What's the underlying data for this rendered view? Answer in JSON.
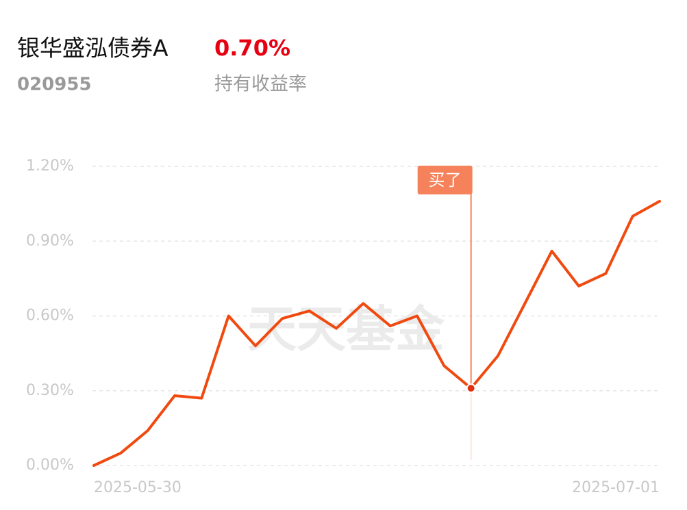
{
  "header": {
    "name": "银华盛泓债券A",
    "code": "020955",
    "return": "0.70%",
    "return_label": "持有收益率"
  },
  "chart_data": {
    "type": "line",
    "watermark": "天天基金",
    "categories": [
      "2025-05-30",
      null,
      null,
      null,
      null,
      null,
      null,
      null,
      null,
      null,
      null,
      null,
      null,
      null,
      null,
      null,
      null,
      null,
      null,
      null,
      null,
      "2025-07-01"
    ],
    "series": [
      {
        "color": "#f04a10",
        "values": [
          0,
          0.05,
          0.14,
          0.28,
          0.27,
          0.6,
          0.48,
          0.59,
          0.62,
          0.55,
          0.65,
          0.56,
          0.6,
          0.4,
          0.31,
          0.44,
          0.65,
          0.86,
          0.72,
          0.77,
          1.0,
          1.06
        ]
      }
    ],
    "ylim": [
      0,
      1.2
    ],
    "yticks": [
      {
        "value": 0,
        "label": "0.00%"
      },
      {
        "value": 0.3,
        "label": "0.30%"
      },
      {
        "value": 0.6,
        "label": "0.60%"
      },
      {
        "value": 0.9,
        "label": "0.90%"
      },
      {
        "value": 1.2,
        "label": "1.20%"
      }
    ],
    "grid": true,
    "marker": {
      "label": "买了",
      "at": 14,
      "color": "#f5825a"
    }
  }
}
